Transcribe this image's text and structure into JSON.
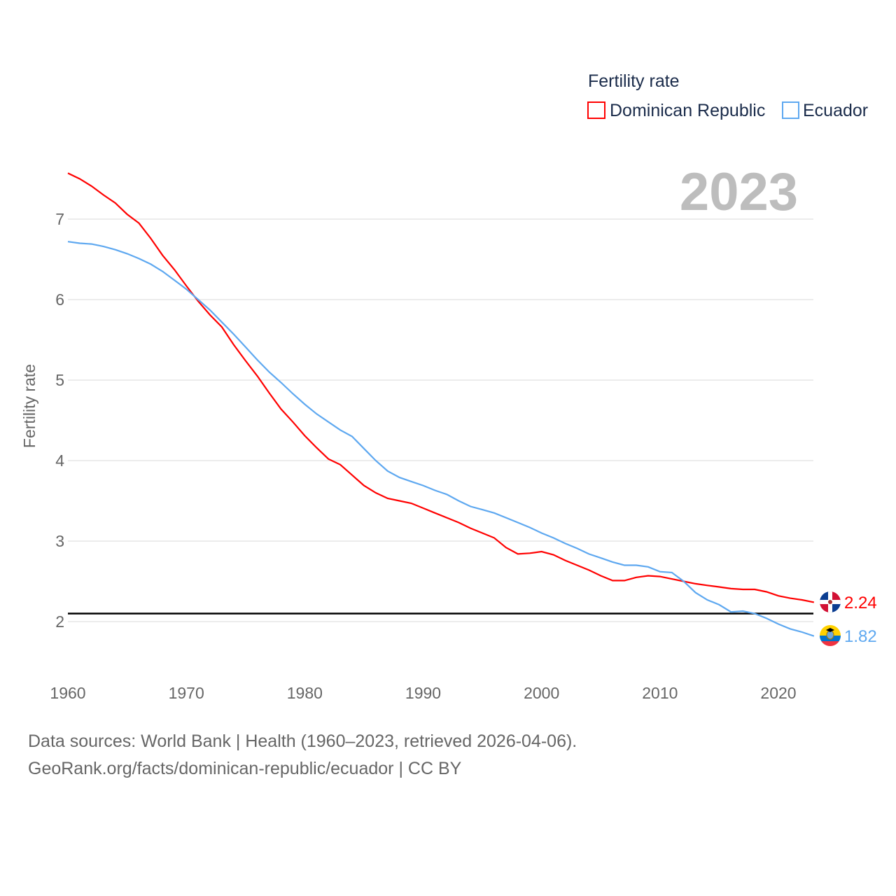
{
  "chart_data": {
    "type": "line",
    "legend_title": "Fertility rate",
    "legend_position": "top-right",
    "ylabel": "Fertility rate",
    "year_label": "2023",
    "xlim": [
      1960,
      2023
    ],
    "ylim": [
      1.5,
      7.6
    ],
    "x_ticks": [
      1960,
      1970,
      1980,
      1990,
      2000,
      2010,
      2020
    ],
    "y_ticks": [
      2,
      3,
      4,
      5,
      6,
      7
    ],
    "reference_line": 2.1,
    "grid": true,
    "start_year": 1960,
    "series": [
      {
        "name": "Dominican Republic",
        "color": "#ff0000",
        "end_label": "2.24",
        "values": [
          7.57,
          7.5,
          7.41,
          7.3,
          7.2,
          7.06,
          6.95,
          6.76,
          6.55,
          6.37,
          6.17,
          5.98,
          5.81,
          5.66,
          5.44,
          5.24,
          5.05,
          4.84,
          4.64,
          4.48,
          4.31,
          4.16,
          4.02,
          3.95,
          3.82,
          3.69,
          3.6,
          3.53,
          3.5,
          3.47,
          3.41,
          3.35,
          3.29,
          3.23,
          3.16,
          3.1,
          3.04,
          2.92,
          2.84,
          2.85,
          2.87,
          2.83,
          2.76,
          2.7,
          2.64,
          2.57,
          2.51,
          2.51,
          2.55,
          2.57,
          2.56,
          2.53,
          2.5,
          2.47,
          2.45,
          2.43,
          2.41,
          2.4,
          2.4,
          2.37,
          2.32,
          2.29,
          2.27,
          2.24
        ]
      },
      {
        "name": "Ecuador",
        "color": "#5ea8f0",
        "end_label": "1.82",
        "values": [
          6.72,
          6.7,
          6.69,
          6.66,
          6.62,
          6.57,
          6.51,
          6.44,
          6.35,
          6.24,
          6.13,
          6.0,
          5.87,
          5.72,
          5.57,
          5.41,
          5.25,
          5.1,
          4.97,
          4.83,
          4.7,
          4.58,
          4.48,
          4.38,
          4.3,
          4.15,
          4.0,
          3.87,
          3.79,
          3.74,
          3.69,
          3.63,
          3.58,
          3.5,
          3.43,
          3.39,
          3.35,
          3.29,
          3.23,
          3.17,
          3.1,
          3.04,
          2.97,
          2.91,
          2.84,
          2.79,
          2.74,
          2.7,
          2.7,
          2.68,
          2.62,
          2.61,
          2.5,
          2.36,
          2.27,
          2.21,
          2.12,
          2.13,
          2.1,
          2.04,
          1.97,
          1.91,
          1.87,
          1.82
        ]
      }
    ]
  },
  "footer": {
    "line1": "Data sources: World Bank | Health (1960–2023, retrieved 2026-04-06).",
    "line2": "GeoRank.org/facts/dominican-republic/ecuador | CC BY"
  }
}
